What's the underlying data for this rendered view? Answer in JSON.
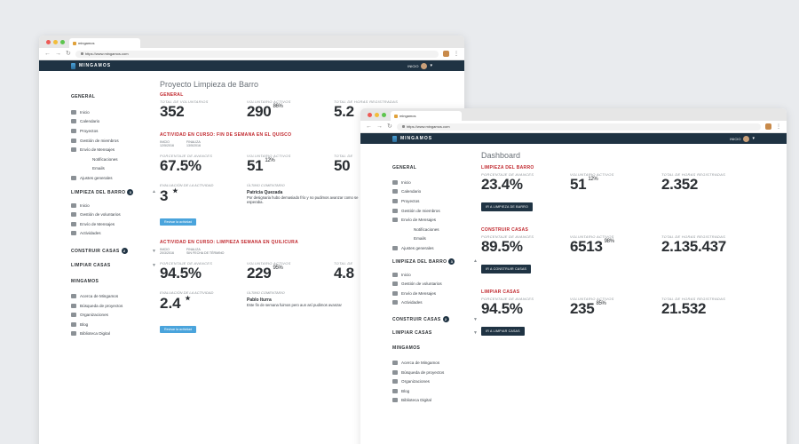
{
  "back": {
    "tab_title": "mingamos",
    "url": "https://www.mingamos.com",
    "brand": "MINGAMOS",
    "user_label": "INICIO",
    "sidebar": {
      "general_title": "GENERAL",
      "general_items": [
        "Inicio",
        "Calendario",
        "Proyectos",
        "Gestión de miembros",
        "Envío de Mensajes"
      ],
      "general_subitems": [
        "Notificaciones",
        "Emails"
      ],
      "general_last": "Ajustes generales",
      "lb_title": "LIMPIEZA DEL BARRO",
      "lb_badge": "3",
      "lb_items": [
        "Inicio",
        "Gestión de voluntarios",
        "Envío de Mensajes",
        "Actividades"
      ],
      "cc_title": "CONSTRUIR CASAS",
      "cc_badge": "2",
      "lc_title": "LIMPIAR CASAS",
      "m_title": "MINGAMOS",
      "m_items": [
        "Acerca de Mingamos",
        "Búsqueda de proyectos",
        "Organizaciones",
        "Blog",
        "Biblioteca Digital"
      ]
    },
    "main": {
      "title": "Proyecto Limpieza de Barro",
      "general_label": "GENERAL",
      "stat_labels": [
        "TOTAL DE VOLUNTARIOS",
        "VOLUNTARIO ACTIVOS",
        "TOTAL DE HORAS REGISTRADAS"
      ],
      "total_vol": "352",
      "active_vol": "290",
      "active_pct": "86%",
      "hours": "5.2",
      "act1": {
        "label": "ACTIVIDAD EN CURSO: FIN DE SEMANA EN EL QUISCO",
        "start_lbl": "INICIO",
        "start": "12/5/2016",
        "end_lbl": "FINALIZA",
        "end": "13/5/2016",
        "labels": [
          "PORCENTAJE DE AVANCES",
          "VOLUNTARIO ACTIVOS",
          "TOTAL DE"
        ],
        "progress": "67.5%",
        "active": "51",
        "active_pct": "12%",
        "hours": "50",
        "eval_lbl": "EVALUACIÓN DE LA ACTIVIDAD",
        "comment_lbl": "ÚLTIMO COMENTARIO",
        "rating": "3",
        "comment_name": "Patricia Quezada",
        "comment_text": "Por designaria hubo demasiado frío y no pudimos avanzar como se esperaba.",
        "button": "Revisar la actividad"
      },
      "act2": {
        "label": "ACTIVIDAD EN CURSO: LIMPIEZA SEMANA EN QUILICURA",
        "start_lbl": "INICIO",
        "start": "20/3/2016",
        "end_lbl": "FINALIZA",
        "end": "SIN FECHA DE TÉRMINO",
        "labels": [
          "PORCENTAJE DE AVANCES",
          "VOLUNTARIO ACTIVOS",
          "TOTAL DE"
        ],
        "progress": "94.5%",
        "active": "229",
        "active_pct": "95%",
        "hours": "4.8",
        "eval_lbl": "EVALUACIÓN DE LA ACTIVIDAD",
        "comment_lbl": "ÚLTIMO COMENTARIO",
        "rating": "2.4",
        "comment_name": "Pablo Iturra",
        "comment_text": "Este fin de semana fuimos pero aun así pudimos avanzar",
        "button": "Revisar la actividad"
      }
    }
  },
  "front": {
    "tab_title": "mingamos",
    "url": "https://www.mingamos.com",
    "brand": "MINGAMOS",
    "user_label": "INICIO",
    "sidebar": {
      "general_title": "GENERAL",
      "general_items": [
        "Inicio",
        "Calendario",
        "Proyectos",
        "Gestión de miembros",
        "Envío de Mensajes"
      ],
      "general_subitems": [
        "Notificaciones",
        "Emails"
      ],
      "general_last": "Ajustes generales",
      "lb_title": "LIMPIEZA DEL BARRO",
      "lb_badge": "3",
      "lb_items": [
        "Inicio",
        "Gestión de voluntarios",
        "Envío de Mensajes",
        "Actividades"
      ],
      "cc_title": "CONSTRUIR CASAS",
      "cc_badge": "2",
      "lc_title": "LIMPIAR CASAS",
      "m_title": "MINGAMOS",
      "m_items": [
        "Acerca de Mingamos",
        "Búsqueda de proyectos",
        "Organizaciones",
        "Blog",
        "Biblioteca Digital"
      ]
    },
    "main": {
      "title": "Dashboard",
      "projects": [
        {
          "label": "LIMPIEZA DEL BARRO",
          "stat_labels": [
            "PORCENTAJE DE AVANCES",
            "VOLUNTARIO ACTIVOS",
            "TOTAL DE HORAS REGISTRADAS"
          ],
          "progress": "23.4%",
          "active": "51",
          "active_pct": "12%",
          "hours": "2.352",
          "button": "IR A LIMPIEZA DE BARRO"
        },
        {
          "label": "CONSTRUIR CASAS",
          "stat_labels": [
            "PORCENTAJE DE AVANCES",
            "VOLUNTARIO ACTIVOS",
            "TOTAL DE HORAS REGISTRADAS"
          ],
          "progress": "89.5%",
          "active": "6513",
          "active_pct": "98%",
          "hours": "2.135.437",
          "button": "IR A CONSTRUIR CASAS"
        },
        {
          "label": "LIMPIAR CASAS",
          "stat_labels": [
            "PORCENTAJE DE AVANCES",
            "VOLUNTARIO ACTIVOS",
            "TOTAL DE HORAS REGISTRADAS"
          ],
          "progress": "94.5%",
          "active": "235",
          "active_pct": "85%",
          "hours": "21.532",
          "button": "IR A LIMPIAR CASAS"
        }
      ]
    }
  },
  "colors": {
    "navbar": "#1f3343",
    "accent_red": "#c0272d",
    "button_blue": "#4aa4dc"
  }
}
